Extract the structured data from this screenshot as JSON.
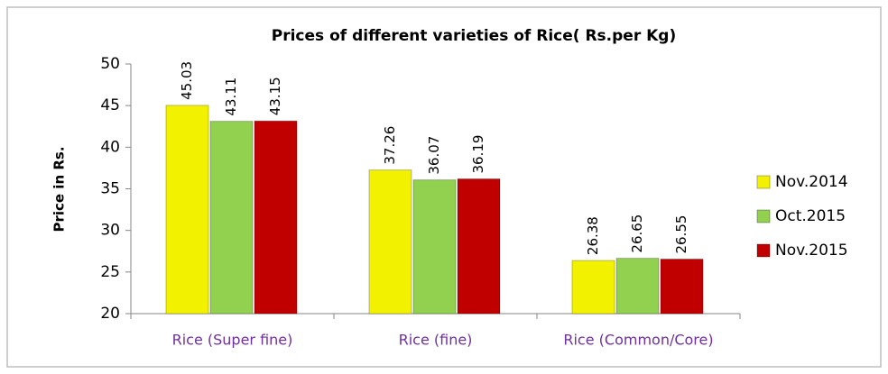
{
  "chart_data": {
    "type": "bar",
    "title": "Prices of different varieties of Rice( Rs.per Kg)",
    "y_label": "Price in Rs.",
    "categories": [
      "Rice (Super fine)",
      "Rice (fine)",
      "Rice (Common/Core)"
    ],
    "series": [
      {
        "name": "Nov.2014",
        "color": "#f2f200",
        "values": [
          45.03,
          37.26,
          26.38
        ]
      },
      {
        "name": "Oct.2015",
        "color": "#92d050",
        "values": [
          43.11,
          36.07,
          26.65
        ]
      },
      {
        "name": "Nov.2015",
        "color": "#c00000",
        "values": [
          43.15,
          36.19,
          26.55
        ]
      }
    ],
    "ylim": [
      20,
      50
    ],
    "yticks": [
      20,
      25,
      30,
      35,
      40,
      45,
      50
    ],
    "legend": "right"
  }
}
